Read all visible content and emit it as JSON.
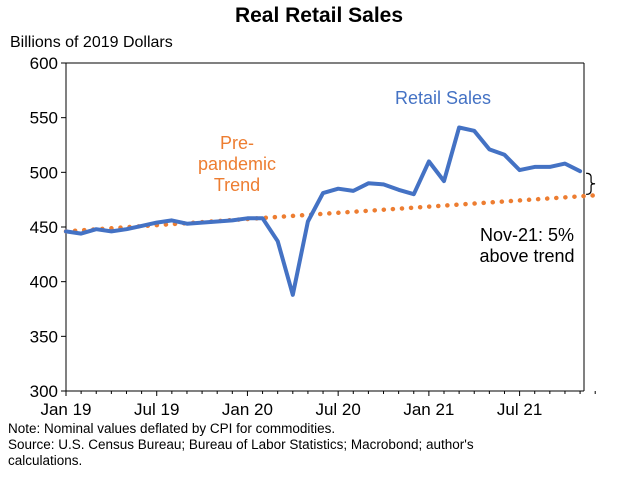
{
  "chart_data": {
    "type": "line",
    "title": "Real Retail Sales",
    "ylabel": "Billions of 2019 Dollars",
    "ylim": [
      300,
      600
    ],
    "yticks": [
      300,
      350,
      400,
      450,
      500,
      550,
      600
    ],
    "xtick_labels": [
      "Jan 19",
      "Jul 19",
      "Jan 20",
      "Jul 20",
      "Jan 21",
      "Jul 21"
    ],
    "x": [
      "Jan 19",
      "Feb 19",
      "Mar 19",
      "Apr 19",
      "May 19",
      "Jun 19",
      "Jul 19",
      "Aug 19",
      "Sep 19",
      "Oct 19",
      "Nov 19",
      "Dec 19",
      "Jan 20",
      "Feb 20",
      "Mar 20",
      "Apr 20",
      "May 20",
      "Jun 20",
      "Jul 20",
      "Aug 20",
      "Sep 20",
      "Oct 20",
      "Nov 20",
      "Dec 20",
      "Jan 21",
      "Feb 21",
      "Mar 21",
      "Apr 21",
      "May 21",
      "Jun 21",
      "Jul 21",
      "Aug 21",
      "Sep 21",
      "Oct 21",
      "Nov 21"
    ],
    "series": [
      {
        "name": "Retail Sales",
        "color": "#4472C4",
        "style": "solid",
        "values": [
          446,
          444,
          448,
          446,
          448,
          451,
          454,
          456,
          453,
          454,
          455,
          456,
          458,
          458,
          437,
          388,
          455,
          481,
          485,
          483,
          490,
          489,
          484,
          480,
          510,
          492,
          541,
          538,
          521,
          516,
          502,
          505,
          505,
          508,
          501
        ]
      },
      {
        "name": "Pre-pandemic Trend",
        "color": "#ED7D31",
        "style": "dotted",
        "x_range": [
          "Jan 19",
          "Dec 21"
        ],
        "values_start_end": [
          446,
          479
        ]
      }
    ],
    "annotations": {
      "series_label_retail": "Retail Sales",
      "series_label_trend": [
        "Pre-",
        "pandemic",
        "Trend"
      ],
      "callout": [
        "Nov-21: 5%",
        "above trend"
      ]
    },
    "grid": false
  },
  "notes": {
    "line1": "Note: Nominal values deflated by CPI for commodities.",
    "line2": "Source: U.S. Census Bureau; Bureau of Labor Statistics; Macrobond; author's",
    "line3": "calculations."
  }
}
